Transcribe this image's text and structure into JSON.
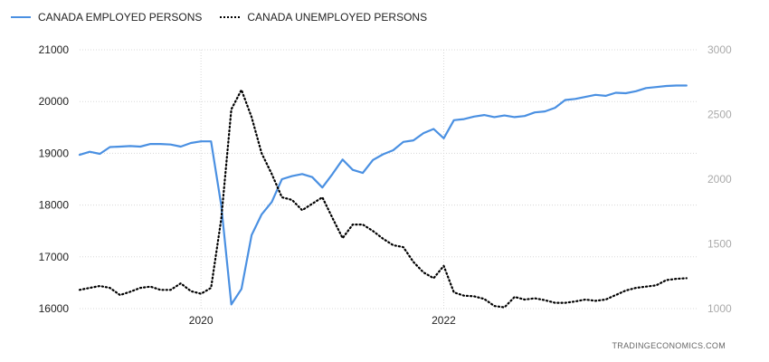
{
  "legend": {
    "series1": "CANADA EMPLOYED PERSONS",
    "series2": "CANADA UNEMPLOYED PERSONS"
  },
  "watermark": "TRADINGECONOMICS.COM",
  "colors": {
    "employed": "#4a90e2",
    "unemployed": "#000000",
    "grid": "#d8d8d8"
  },
  "chart_data": {
    "type": "line",
    "title": "",
    "xlabel": "",
    "ylabel": "",
    "x_ticks": [
      "2020",
      "2022"
    ],
    "y_left": {
      "ylim": [
        16000,
        21000
      ],
      "ticks": [
        "21000",
        "20000",
        "19000",
        "18000",
        "17000",
        "16000"
      ]
    },
    "y_right": {
      "ylim": [
        1000,
        3000
      ],
      "ticks": [
        "3000",
        "2500",
        "2000",
        "1500",
        "1000"
      ]
    },
    "grid": true,
    "legend_position": "top-left",
    "x_start": "2019-01",
    "x_end": "2024-02",
    "series": [
      {
        "name": "CANADA EMPLOYED PERSONS",
        "axis": "left",
        "style": "solid",
        "values": [
          18970,
          19030,
          18990,
          19120,
          19130,
          19140,
          19130,
          19180,
          19180,
          19170,
          19130,
          19200,
          19230,
          19230,
          18000,
          16080,
          16380,
          17420,
          17820,
          18060,
          18500,
          18560,
          18600,
          18540,
          18340,
          18600,
          18880,
          18680,
          18620,
          18870,
          18980,
          19060,
          19220,
          19250,
          19390,
          19470,
          19290,
          19640,
          19660,
          19710,
          19740,
          19700,
          19730,
          19700,
          19720,
          19790,
          19810,
          19880,
          20030,
          20050,
          20090,
          20130,
          20110,
          20170,
          20160,
          20200,
          20260,
          20280,
          20300,
          20310,
          20310
        ]
      },
      {
        "name": "CANADA UNEMPLOYED PERSONS",
        "axis": "right",
        "style": "dotted",
        "values": [
          1145,
          1160,
          1175,
          1160,
          1105,
          1130,
          1160,
          1170,
          1145,
          1145,
          1195,
          1135,
          1115,
          1160,
          1690,
          2540,
          2690,
          2480,
          2200,
          2040,
          1860,
          1840,
          1760,
          1810,
          1860,
          1700,
          1545,
          1650,
          1650,
          1600,
          1540,
          1490,
          1475,
          1360,
          1280,
          1235,
          1330,
          1125,
          1100,
          1095,
          1075,
          1020,
          1010,
          1090,
          1070,
          1080,
          1065,
          1045,
          1045,
          1055,
          1070,
          1060,
          1070,
          1105,
          1140,
          1160,
          1170,
          1180,
          1220,
          1230,
          1235
        ]
      }
    ]
  }
}
